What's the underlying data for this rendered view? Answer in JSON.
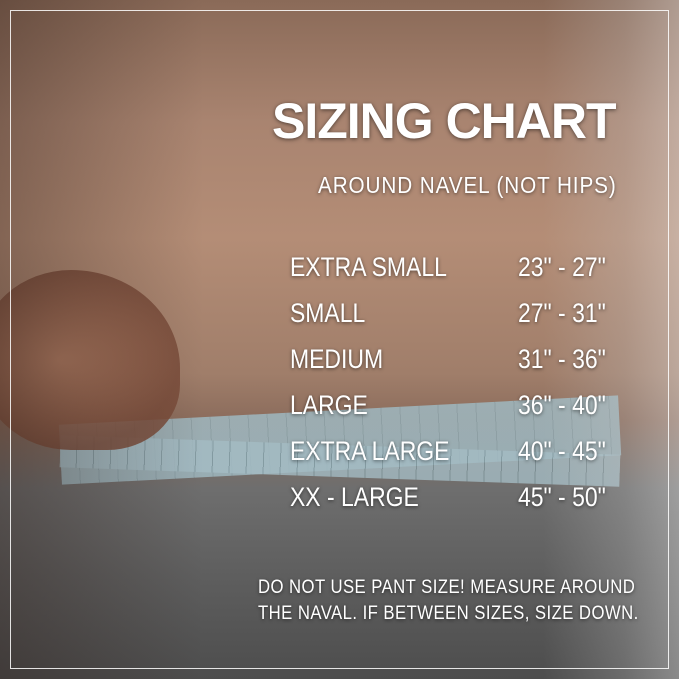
{
  "title": "SIZING CHART",
  "subtitle": "AROUND NAVEL (NOT HIPS)",
  "sizes": [
    {
      "size": "EXTRA SMALL",
      "range": "23\" - 27\""
    },
    {
      "size": "SMALL",
      "range": "27\" - 31\""
    },
    {
      "size": "MEDIUM",
      "range": "31\" - 36\""
    },
    {
      "size": "LARGE",
      "range": "36\" - 40\""
    },
    {
      "size": "EXTRA LARGE",
      "range": "40\" - 45\""
    },
    {
      "size": "XX - LARGE",
      "range": "45\" - 50\""
    }
  ],
  "note_line1": "DO NOT USE PANT SIZE! MEASURE AROUND",
  "note_line2": "THE NAVAL. IF BETWEEN SIZES, SIZE DOWN."
}
